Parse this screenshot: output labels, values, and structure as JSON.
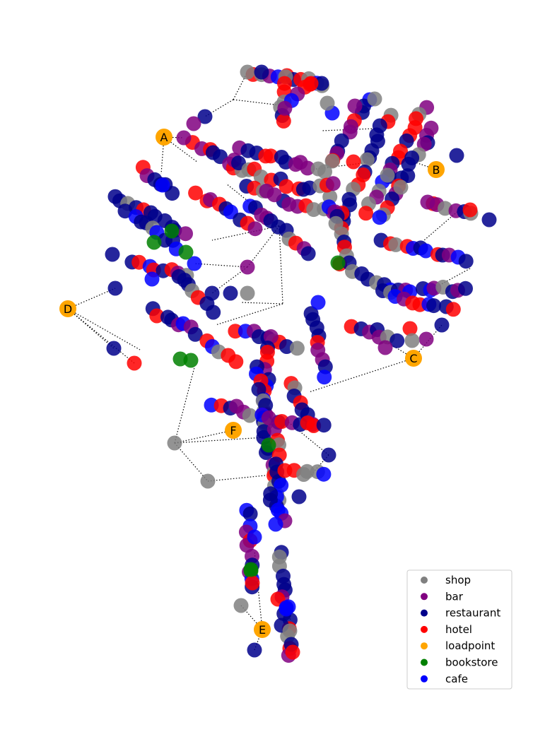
{
  "legend": {
    "items": [
      {
        "label": "shop",
        "color": "#808080"
      },
      {
        "label": "bar",
        "color": "#800080"
      },
      {
        "label": "restaurant",
        "color": "#00008b"
      },
      {
        "label": "hotel",
        "color": "#ff0000"
      },
      {
        "label": "loadpoint",
        "color": "#ffa500"
      },
      {
        "label": "bookstore",
        "color": "#008000"
      },
      {
        "label": "cafe",
        "color": "#0000ff"
      }
    ]
  },
  "loadpoints": [
    {
      "label": "A"
    },
    {
      "label": "B"
    },
    {
      "label": "C"
    },
    {
      "label": "D"
    },
    {
      "label": "E"
    },
    {
      "label": "F"
    }
  ]
}
